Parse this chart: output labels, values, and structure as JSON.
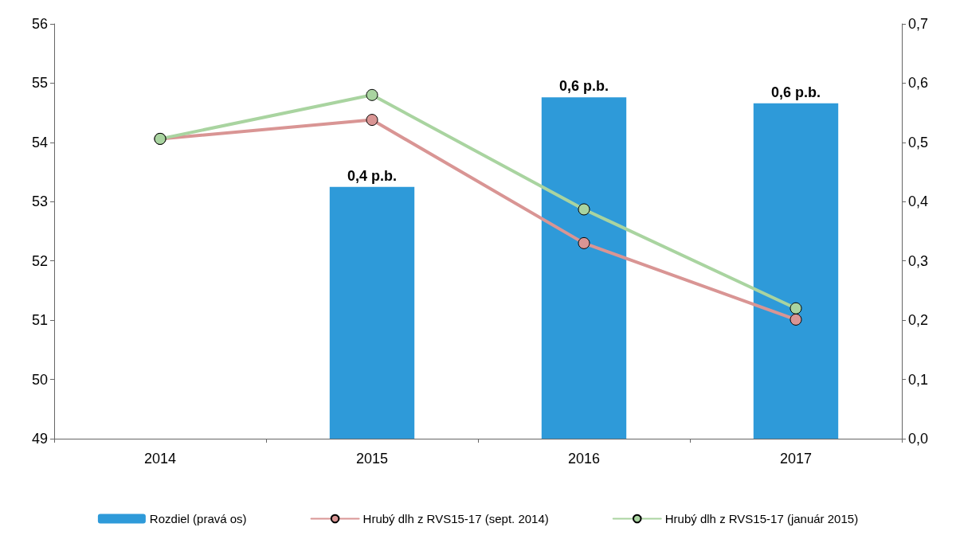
{
  "chart_data": {
    "type": "line",
    "categories": [
      "2014",
      "2015",
      "2016",
      "2017"
    ],
    "series": [
      {
        "type": "bar",
        "axis": "y2",
        "name": "Rozdiel (pravá os)",
        "color": "#2e9ad9",
        "values": [
          null,
          0.425,
          0.576,
          0.566
        ],
        "value_labels": [
          null,
          "0,4 p.b.",
          "0,6 p.b.",
          "0,6 p.b."
        ]
      },
      {
        "name": "Hrubý dlh z RVS15-17 (sept. 2014)",
        "color": "#d99594",
        "values": [
          54.06,
          54.38,
          52.3,
          51.01
        ]
      },
      {
        "name": "Hrubý dlh z RVS15-17 (január 2015)",
        "color": "#a9d4a0",
        "values": [
          54.06,
          54.8,
          52.87,
          51.2
        ]
      }
    ],
    "ylim": [
      49,
      56
    ],
    "yticks": [
      49,
      50,
      51,
      52,
      53,
      54,
      55,
      56
    ],
    "y2lim": [
      0,
      0.7
    ],
    "y2ticks": [
      {
        "value": 0,
        "label": "0,0"
      },
      {
        "value": 0.1,
        "label": "0,1"
      },
      {
        "value": 0.2,
        "label": "0,2"
      },
      {
        "value": 0.3,
        "label": "0,3"
      },
      {
        "value": 0.4,
        "label": "0,4"
      },
      {
        "value": 0.5,
        "label": "0,5"
      },
      {
        "value": 0.6,
        "label": "0,6"
      },
      {
        "value": 0.7,
        "label": "0,7"
      }
    ],
    "legend": "bottom",
    "marker": "circle",
    "line_style": "solid"
  }
}
